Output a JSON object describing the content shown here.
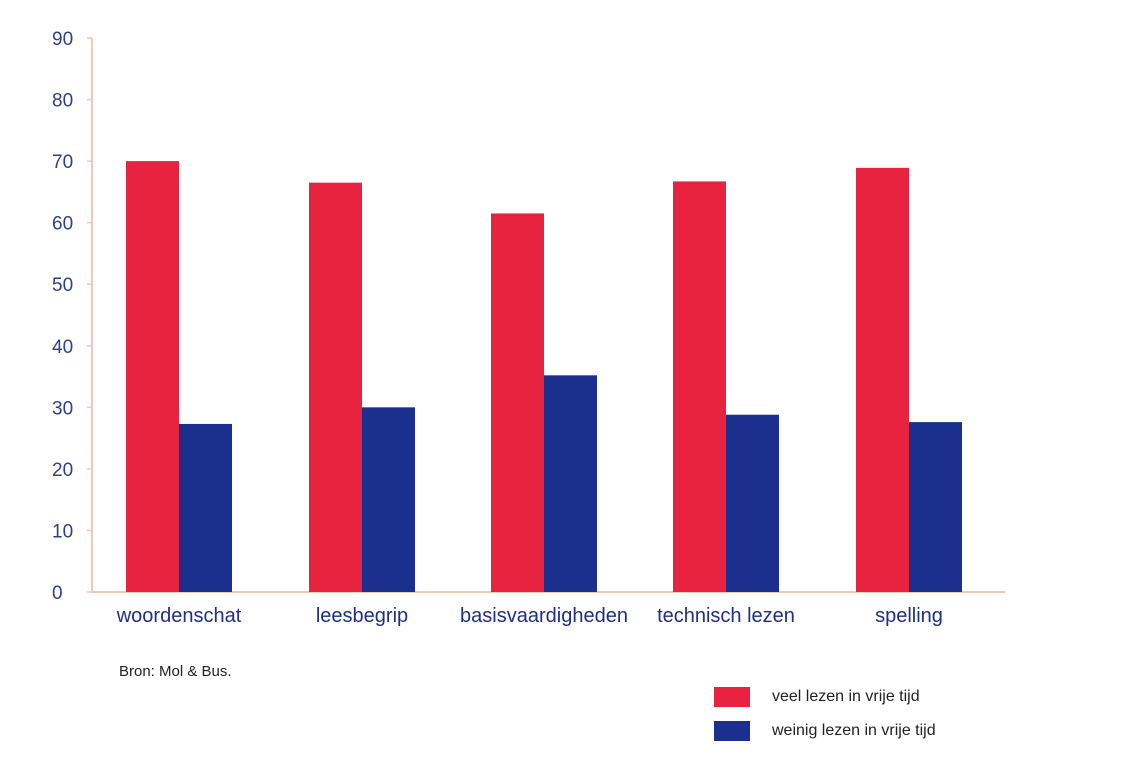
{
  "chart_data": {
    "type": "bar",
    "categories": [
      "woordenschat",
      "leesbegrip",
      "basisvaardigheden",
      "technisch lezen",
      "spelling"
    ],
    "series": [
      {
        "name": "veel lezen in vrije tijd",
        "values": [
          70,
          66.5,
          61.5,
          66.7,
          68.9
        ]
      },
      {
        "name": "weinig lezen in vrije tijd",
        "values": [
          27.3,
          30.0,
          35.2,
          28.8,
          27.6
        ]
      }
    ],
    "ylim": [
      0,
      90
    ],
    "yticks": [
      "0",
      "10",
      "20",
      "30",
      "40",
      "50",
      "60",
      "70",
      "80",
      "90"
    ],
    "title": "",
    "xlabel": "",
    "ylabel": "",
    "legend_position": "bottom-right",
    "grid": false,
    "colors": {
      "series_1": "#e8233f",
      "series_2": "#1b2f8f",
      "axis": "#efc9b8",
      "tick_label": "#2f3f8f"
    }
  },
  "source": "Bron: Mol & Bus."
}
